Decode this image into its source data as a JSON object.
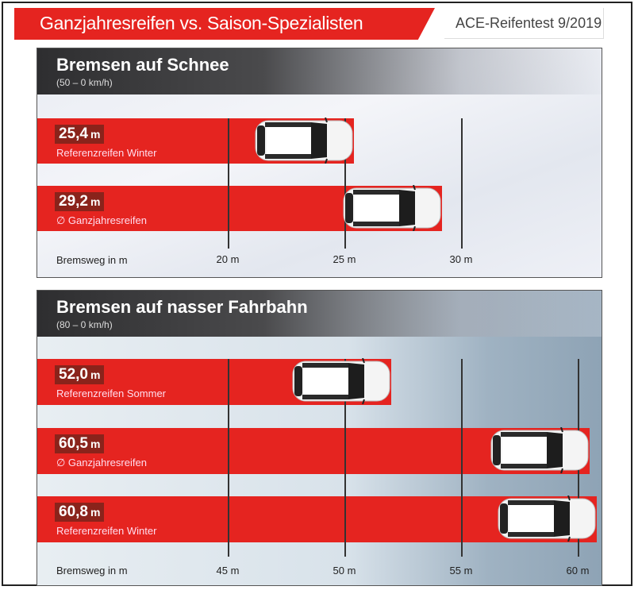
{
  "header": {
    "title": "Ganzjahresreifen vs. Saison-Spezialisten",
    "source": "ACE-Reifentest 9/2019"
  },
  "colors": {
    "bar": "#e52420",
    "value_box": "#8a231b"
  },
  "chart_data": [
    {
      "type": "bar",
      "orientation": "horizontal",
      "title": "Bremsen auf Schnee",
      "subtitle": "(50 – 0 km/h)",
      "xlabel": "Bremsweg in m",
      "unit": "m",
      "ticks": [
        {
          "value": 20,
          "label": "20 m"
        },
        {
          "value": 25,
          "label": "25 m"
        },
        {
          "value": 30,
          "label": "30 m"
        }
      ],
      "bars": [
        {
          "value": 25.4,
          "value_label": "25,4",
          "label": "Referenzreifen Winter"
        },
        {
          "value": 29.2,
          "value_label": "29,2",
          "label": "∅ Ganzjahresreifen"
        }
      ]
    },
    {
      "type": "bar",
      "orientation": "horizontal",
      "title": "Bremsen auf nasser Fahrbahn",
      "subtitle": "(80 – 0 km/h)",
      "xlabel": "Bremsweg in m",
      "unit": "m",
      "ticks": [
        {
          "value": 45,
          "label": "45 m"
        },
        {
          "value": 50,
          "label": "50 m"
        },
        {
          "value": 55,
          "label": "55 m"
        },
        {
          "value": 60,
          "label": "60 m"
        }
      ],
      "bars": [
        {
          "value": 52.0,
          "value_label": "52,0",
          "label": "Referenzreifen Sommer"
        },
        {
          "value": 60.5,
          "value_label": "60,5",
          "label": "∅ Ganzjahresreifen"
        },
        {
          "value": 60.8,
          "value_label": "60,8",
          "label": "Referenzreifen Winter"
        }
      ]
    }
  ]
}
